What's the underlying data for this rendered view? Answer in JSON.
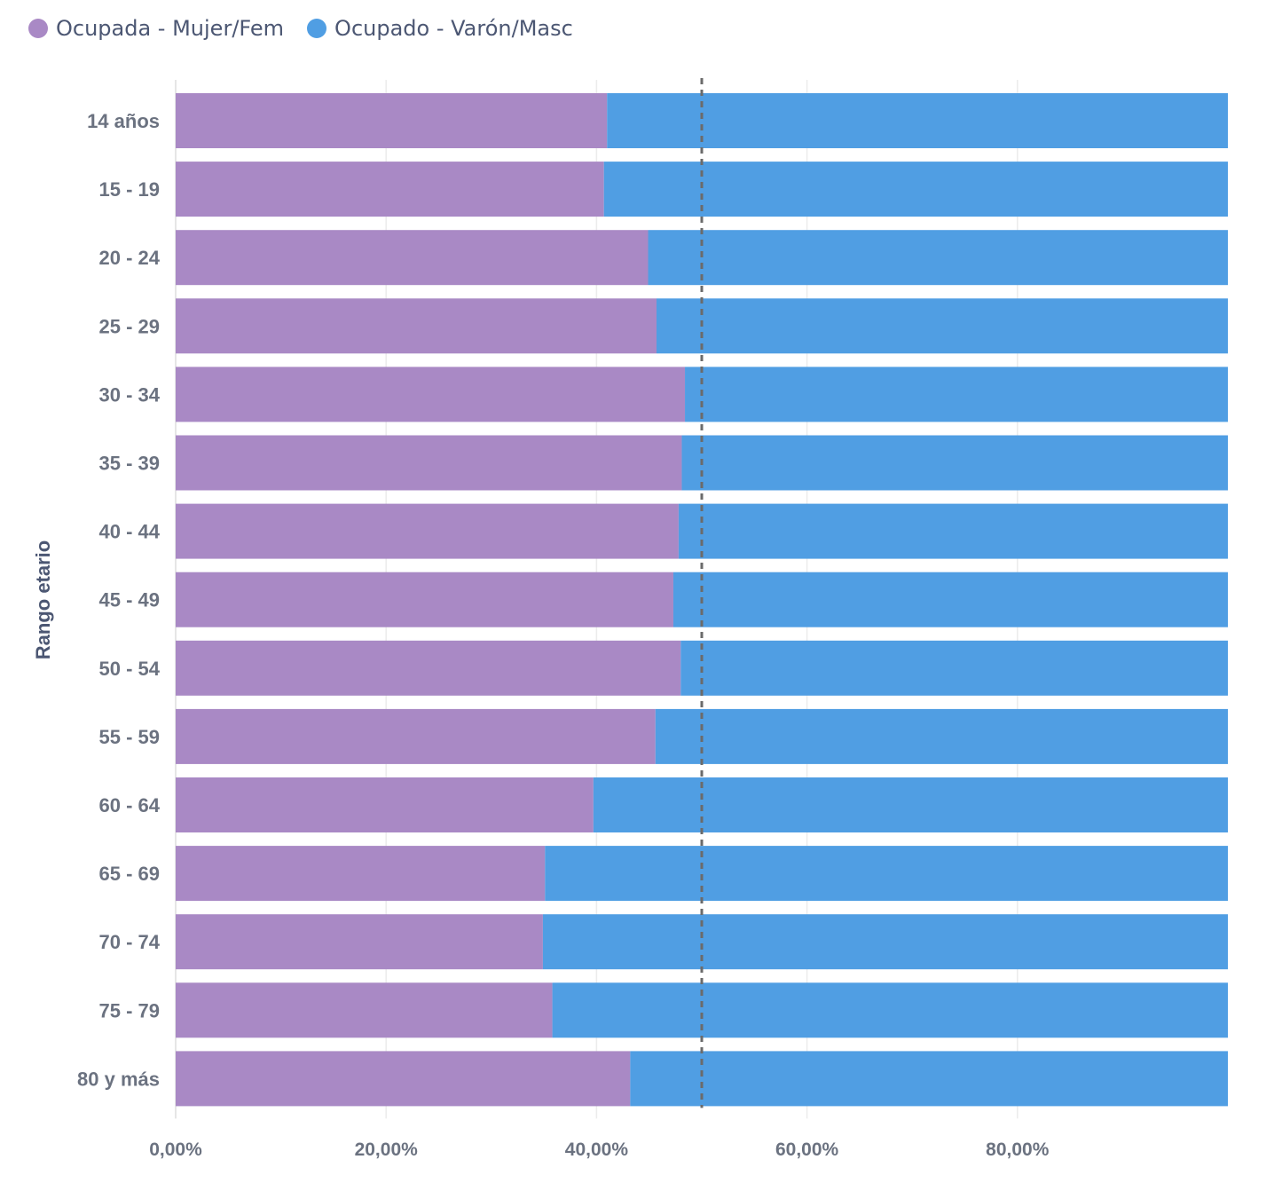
{
  "chart_data": {
    "type": "bar",
    "orientation": "horizontal",
    "stacked": true,
    "ylabel": "Rango etario",
    "xlabel": "",
    "categories": [
      "14 años",
      "15 - 19",
      "20 - 24",
      "25 - 29",
      "30 - 34",
      "35 - 39",
      "40 - 44",
      "45 - 49",
      "50 - 54",
      "55 - 59",
      "60 - 64",
      "65 - 69",
      "70 - 74",
      "75 - 79",
      "80 y más"
    ],
    "series": [
      {
        "name": "Ocupada - Mujer/Fem",
        "color": "#a989c5",
        "values": [
          41.0,
          40.7,
          44.9,
          45.7,
          48.4,
          48.1,
          47.8,
          47.3,
          48.0,
          45.6,
          39.7,
          35.1,
          34.9,
          35.8,
          43.2
        ]
      },
      {
        "name": "Ocupado - Varón/Masc",
        "color": "#509ee3",
        "values": [
          59.0,
          59.3,
          55.1,
          54.3,
          51.6,
          51.9,
          52.2,
          52.7,
          52.0,
          54.4,
          60.3,
          64.9,
          65.1,
          64.2,
          56.8
        ]
      }
    ],
    "xlim": [
      0,
      100
    ],
    "x_ticks": [
      {
        "value": 0,
        "label": "0,00%"
      },
      {
        "value": 20,
        "label": "20,00%"
      },
      {
        "value": 40,
        "label": "40,00%"
      },
      {
        "value": 60,
        "label": "60,00%"
      },
      {
        "value": 80,
        "label": "80,00%"
      }
    ],
    "reference_line": {
      "value": 50,
      "style": "dashed",
      "color": "#6b6b6b"
    },
    "grid": true,
    "legend_position": "top-left"
  }
}
